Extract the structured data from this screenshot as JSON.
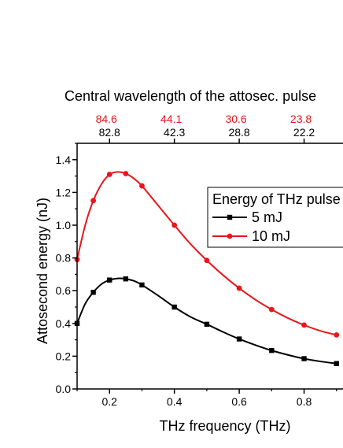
{
  "chart_data": {
    "type": "line",
    "title": "",
    "xlabel": "THz frequency (THz)",
    "ylabel": "Attosecond energy (nJ)",
    "top_axis_label": "Central wavelength of the attosec. pulse",
    "xlim": [
      0.1,
      0.92
    ],
    "ylim": [
      0.0,
      1.5
    ],
    "x_ticks": [
      {
        "value": 0.2,
        "label": "0.2"
      },
      {
        "value": 0.4,
        "label": "0.4"
      },
      {
        "value": 0.6,
        "label": "0.6"
      },
      {
        "value": 0.8,
        "label": "0.8"
      }
    ],
    "y_ticks": [
      {
        "value": 0.0,
        "label": "0.0"
      },
      {
        "value": 0.2,
        "label": "0.2"
      },
      {
        "value": 0.4,
        "label": "0.4"
      },
      {
        "value": 0.6,
        "label": "0.6"
      },
      {
        "value": 0.8,
        "label": "0.8"
      },
      {
        "value": 1.0,
        "label": "1.0"
      },
      {
        "value": 1.2,
        "label": "1.2"
      },
      {
        "value": 1.4,
        "label": "1.4"
      }
    ],
    "top_ticks": [
      {
        "x": 0.2,
        "label_black": "82.8",
        "label_red": "84.6"
      },
      {
        "x": 0.4,
        "label_black": "42.3",
        "label_red": "44.1"
      },
      {
        "x": 0.6,
        "label_black": "28.8",
        "label_red": "30.6"
      },
      {
        "x": 0.8,
        "label_black": "22.2",
        "label_red": "23.8"
      }
    ],
    "legend": {
      "title": "Energy of THz pulse",
      "placement": "right"
    },
    "grid": false,
    "colors": {
      "series_5mJ": "#000000",
      "series_10mJ": "#e8151b",
      "top_labels_red": "#e8151b"
    },
    "series": [
      {
        "name": "5 mJ",
        "marker": "square",
        "x": [
          0.1,
          0.15,
          0.2,
          0.25,
          0.3,
          0.4,
          0.5,
          0.6,
          0.7,
          0.8,
          0.9
        ],
        "y": [
          0.4,
          0.59,
          0.665,
          0.672,
          0.635,
          0.5,
          0.395,
          0.305,
          0.235,
          0.185,
          0.155
        ],
        "curve_x": [
          0.1,
          0.125,
          0.15,
          0.175,
          0.2,
          0.225,
          0.25,
          0.275,
          0.3,
          0.35,
          0.4,
          0.45,
          0.5,
          0.55,
          0.6,
          0.65,
          0.7,
          0.75,
          0.8,
          0.85,
          0.9
        ],
        "curve_y": [
          0.4,
          0.52,
          0.59,
          0.64,
          0.665,
          0.675,
          0.672,
          0.66,
          0.635,
          0.57,
          0.5,
          0.44,
          0.395,
          0.348,
          0.305,
          0.268,
          0.235,
          0.208,
          0.185,
          0.168,
          0.155
        ]
      },
      {
        "name": "10 mJ",
        "marker": "circle",
        "x": [
          0.1,
          0.15,
          0.2,
          0.25,
          0.3,
          0.4,
          0.5,
          0.6,
          0.7,
          0.8,
          0.9
        ],
        "y": [
          0.79,
          1.15,
          1.31,
          1.315,
          1.24,
          1.0,
          0.785,
          0.615,
          0.485,
          0.39,
          0.33
        ],
        "curve_x": [
          0.1,
          0.125,
          0.15,
          0.175,
          0.2,
          0.225,
          0.25,
          0.275,
          0.3,
          0.35,
          0.4,
          0.45,
          0.5,
          0.55,
          0.6,
          0.65,
          0.7,
          0.75,
          0.8,
          0.85,
          0.9
        ],
        "curve_y": [
          0.79,
          1.0,
          1.15,
          1.25,
          1.31,
          1.325,
          1.315,
          1.285,
          1.24,
          1.12,
          1.0,
          0.885,
          0.785,
          0.695,
          0.615,
          0.545,
          0.485,
          0.433,
          0.39,
          0.355,
          0.33
        ]
      }
    ]
  }
}
